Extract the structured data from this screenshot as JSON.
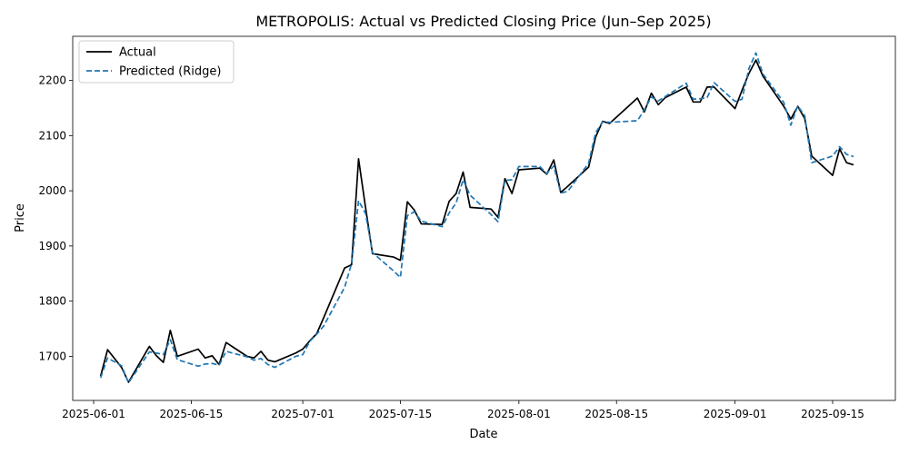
{
  "chart_data": {
    "type": "line",
    "title": "METROPOLIS: Actual vs Predicted Closing Price (Jun–Sep 2025)",
    "xlabel": "Date",
    "ylabel": "Price",
    "xlim": [
      "2025-05-29",
      "2025-09-24"
    ],
    "ylim": [
      1620,
      2280
    ],
    "x_ticks": [
      "2025-06-01",
      "2025-06-15",
      "2025-07-01",
      "2025-07-15",
      "2025-08-01",
      "2025-08-15",
      "2025-09-01",
      "2025-09-15"
    ],
    "y_ticks": [
      1700,
      1800,
      1900,
      2000,
      2100,
      2200
    ],
    "grid": false,
    "legend_position": "top-left",
    "series": [
      {
        "name": "Actual",
        "color": "#000000",
        "style": "solid",
        "points": [
          [
            "2025-06-02",
            1664
          ],
          [
            "2025-06-03",
            1712
          ],
          [
            "2025-06-05",
            1680
          ],
          [
            "2025-06-06",
            1653
          ],
          [
            "2025-06-09",
            1718
          ],
          [
            "2025-06-10",
            1701
          ],
          [
            "2025-06-11",
            1689
          ],
          [
            "2025-06-12",
            1747
          ],
          [
            "2025-06-13",
            1700
          ],
          [
            "2025-06-16",
            1713
          ],
          [
            "2025-06-17",
            1697
          ],
          [
            "2025-06-18",
            1701
          ],
          [
            "2025-06-19",
            1685
          ],
          [
            "2025-06-20",
            1725
          ],
          [
            "2025-06-23",
            1700
          ],
          [
            "2025-06-24",
            1697
          ],
          [
            "2025-06-25",
            1709
          ],
          [
            "2025-06-26",
            1693
          ],
          [
            "2025-06-27",
            1690
          ],
          [
            "2025-06-30",
            1706
          ],
          [
            "2025-07-01",
            1713
          ],
          [
            "2025-07-02",
            1728
          ],
          [
            "2025-07-03",
            1741
          ],
          [
            "2025-07-04",
            1770
          ],
          [
            "2025-07-07",
            1860
          ],
          [
            "2025-07-08",
            1866
          ],
          [
            "2025-07-09",
            2058
          ],
          [
            "2025-07-10",
            1970
          ],
          [
            "2025-07-11",
            1886
          ],
          [
            "2025-07-14",
            1880
          ],
          [
            "2025-07-15",
            1874
          ],
          [
            "2025-07-16",
            1980
          ],
          [
            "2025-07-17",
            1965
          ],
          [
            "2025-07-18",
            1940
          ],
          [
            "2025-07-21",
            1939
          ],
          [
            "2025-07-22",
            1981
          ],
          [
            "2025-07-23",
            1995
          ],
          [
            "2025-07-24",
            2034
          ],
          [
            "2025-07-25",
            1970
          ],
          [
            "2025-07-28",
            1967
          ],
          [
            "2025-07-29",
            1952
          ],
          [
            "2025-07-30",
            2022
          ],
          [
            "2025-07-31",
            1995
          ],
          [
            "2025-08-01",
            2038
          ],
          [
            "2025-08-04",
            2041
          ],
          [
            "2025-08-05",
            2030
          ],
          [
            "2025-08-06",
            2056
          ],
          [
            "2025-08-07",
            1997
          ],
          [
            "2025-08-08",
            2008
          ],
          [
            "2025-08-11",
            2043
          ],
          [
            "2025-08-12",
            2097
          ],
          [
            "2025-08-13",
            2126
          ],
          [
            "2025-08-14",
            2122
          ],
          [
            "2025-08-18",
            2168
          ],
          [
            "2025-08-19",
            2143
          ],
          [
            "2025-08-20",
            2177
          ],
          [
            "2025-08-21",
            2156
          ],
          [
            "2025-08-22",
            2169
          ],
          [
            "2025-08-25",
            2188
          ],
          [
            "2025-08-26",
            2161
          ],
          [
            "2025-08-27",
            2161
          ],
          [
            "2025-08-28",
            2188
          ],
          [
            "2025-08-29",
            2188
          ],
          [
            "2025-09-01",
            2149
          ],
          [
            "2025-09-02",
            2182
          ],
          [
            "2025-09-03",
            2213
          ],
          [
            "2025-09-04",
            2237
          ],
          [
            "2025-09-05",
            2208
          ],
          [
            "2025-09-08",
            2153
          ],
          [
            "2025-09-09",
            2130
          ],
          [
            "2025-09-10",
            2153
          ],
          [
            "2025-09-11",
            2131
          ],
          [
            "2025-09-12",
            2063
          ],
          [
            "2025-09-15",
            2028
          ],
          [
            "2025-09-16",
            2076
          ],
          [
            "2025-09-17",
            2051
          ],
          [
            "2025-09-18",
            2047
          ]
        ]
      },
      {
        "name": "Predicted (Ridge)",
        "color": "#1f77b4",
        "style": "dashed",
        "points": [
          [
            "2025-06-02",
            1661
          ],
          [
            "2025-06-03",
            1697
          ],
          [
            "2025-06-05",
            1683
          ],
          [
            "2025-06-06",
            1652
          ],
          [
            "2025-06-09",
            1708
          ],
          [
            "2025-06-10",
            1706
          ],
          [
            "2025-06-11",
            1703
          ],
          [
            "2025-06-12",
            1730
          ],
          [
            "2025-06-13",
            1694
          ],
          [
            "2025-06-16",
            1682
          ],
          [
            "2025-06-17",
            1686
          ],
          [
            "2025-06-18",
            1687
          ],
          [
            "2025-06-19",
            1684
          ],
          [
            "2025-06-20",
            1709
          ],
          [
            "2025-06-23",
            1699
          ],
          [
            "2025-06-24",
            1693
          ],
          [
            "2025-06-25",
            1696
          ],
          [
            "2025-06-26",
            1685
          ],
          [
            "2025-06-27",
            1680
          ],
          [
            "2025-06-30",
            1700
          ],
          [
            "2025-07-01",
            1703
          ],
          [
            "2025-07-02",
            1727
          ],
          [
            "2025-07-03",
            1740
          ],
          [
            "2025-07-04",
            1755
          ],
          [
            "2025-07-07",
            1825
          ],
          [
            "2025-07-08",
            1868
          ],
          [
            "2025-07-09",
            1982
          ],
          [
            "2025-07-10",
            1959
          ],
          [
            "2025-07-11",
            1888
          ],
          [
            "2025-07-14",
            1855
          ],
          [
            "2025-07-15",
            1843
          ],
          [
            "2025-07-16",
            1955
          ],
          [
            "2025-07-17",
            1962
          ],
          [
            "2025-07-18",
            1945
          ],
          [
            "2025-07-21",
            1935
          ],
          [
            "2025-07-22",
            1960
          ],
          [
            "2025-07-23",
            1978
          ],
          [
            "2025-07-24",
            2020
          ],
          [
            "2025-07-25",
            1992
          ],
          [
            "2025-07-28",
            1957
          ],
          [
            "2025-07-29",
            1944
          ],
          [
            "2025-07-30",
            2019
          ],
          [
            "2025-07-31",
            2020
          ],
          [
            "2025-08-01",
            2044
          ],
          [
            "2025-08-04",
            2044
          ],
          [
            "2025-08-05",
            2031
          ],
          [
            "2025-08-06",
            2045
          ],
          [
            "2025-08-07",
            1996
          ],
          [
            "2025-08-08",
            1999
          ],
          [
            "2025-08-11",
            2050
          ],
          [
            "2025-08-12",
            2105
          ],
          [
            "2025-08-13",
            2125
          ],
          [
            "2025-08-14",
            2124
          ],
          [
            "2025-08-18",
            2127
          ],
          [
            "2025-08-19",
            2147
          ],
          [
            "2025-08-20",
            2170
          ],
          [
            "2025-08-21",
            2163
          ],
          [
            "2025-08-22",
            2171
          ],
          [
            "2025-08-25",
            2195
          ],
          [
            "2025-08-26",
            2166
          ],
          [
            "2025-08-27",
            2167
          ],
          [
            "2025-08-28",
            2169
          ],
          [
            "2025-08-29",
            2196
          ],
          [
            "2025-09-01",
            2162
          ],
          [
            "2025-09-02",
            2166
          ],
          [
            "2025-09-03",
            2222
          ],
          [
            "2025-09-04",
            2250
          ],
          [
            "2025-09-05",
            2212
          ],
          [
            "2025-09-08",
            2160
          ],
          [
            "2025-09-09",
            2119
          ],
          [
            "2025-09-10",
            2154
          ],
          [
            "2025-09-11",
            2136
          ],
          [
            "2025-09-12",
            2051
          ],
          [
            "2025-09-15",
            2063
          ],
          [
            "2025-09-16",
            2080
          ],
          [
            "2025-09-17",
            2066
          ],
          [
            "2025-09-18",
            2062
          ]
        ]
      }
    ]
  }
}
